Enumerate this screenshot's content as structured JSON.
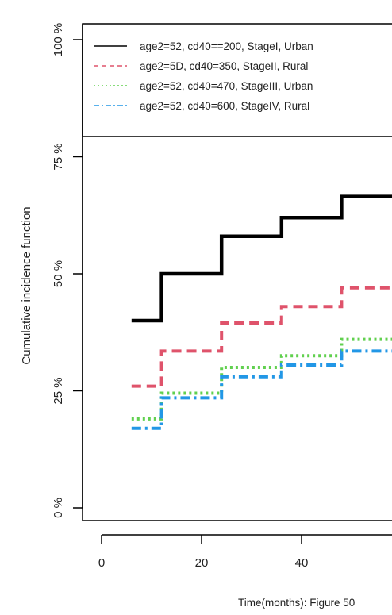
{
  "chart_data": {
    "type": "line",
    "step": true,
    "title": "",
    "xlabel": "Time(months): Figure 50",
    "ylabel": "Cumulative incidence function",
    "xlim": [
      0,
      60
    ],
    "ylim": [
      0,
      1
    ],
    "x_ticks": [
      0,
      20,
      40
    ],
    "x_tick_labels": [
      "0",
      "20",
      "40"
    ],
    "y_ticks": [
      0,
      0.25,
      0.5,
      0.75,
      1.0
    ],
    "y_tick_labels": [
      "0 %",
      "25 %",
      "50 %",
      "75 %",
      "100 %"
    ],
    "grid": false,
    "legend_position": "top",
    "series": [
      {
        "name": "age2=52, cd40==200, StageI, Urban",
        "color": "#000000",
        "dash": "solid",
        "x": [
          6,
          12,
          24,
          36,
          48,
          60
        ],
        "y": [
          0.4,
          0.5,
          0.58,
          0.62,
          0.665,
          0.665
        ]
      },
      {
        "name": "age2=5D, cd40=350, StageII, Rural",
        "color": "#df536b",
        "dash": "dashed",
        "x": [
          6,
          12,
          24,
          36,
          48,
          60
        ],
        "y": [
          0.26,
          0.335,
          0.395,
          0.43,
          0.47,
          0.47
        ]
      },
      {
        "name": "age2=52, cd40=470, StageIII, Urban",
        "color": "#61d04f",
        "dash": "dotted",
        "x": [
          6,
          12,
          24,
          36,
          48,
          60
        ],
        "y": [
          0.19,
          0.245,
          0.3,
          0.325,
          0.36,
          0.36
        ]
      },
      {
        "name": "age2=52, cd40=600, StageIV, Rural",
        "color": "#2297e6",
        "dash": "dotdash",
        "x": [
          6,
          12,
          24,
          36,
          48,
          60
        ],
        "y": [
          0.17,
          0.235,
          0.28,
          0.305,
          0.335,
          0.335
        ]
      }
    ]
  }
}
